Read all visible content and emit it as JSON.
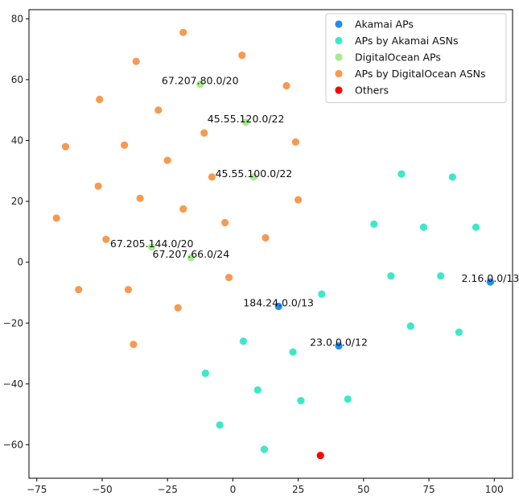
{
  "chart_data": {
    "type": "scatter",
    "title": "",
    "xlabel": "",
    "ylabel": "",
    "xlim": [
      -78,
      107
    ],
    "ylim": [
      -71,
      83
    ],
    "xticks": [
      -75,
      -50,
      -25,
      0,
      25,
      50,
      75,
      100
    ],
    "yticks": [
      -60,
      -40,
      -20,
      0,
      20,
      40,
      60,
      80
    ],
    "grid": false,
    "legend_position": "top-right",
    "series": [
      {
        "name": "Akamai APs",
        "color": "#1f8fef",
        "points": [
          [
            17.5,
            -14.5
          ],
          [
            40.5,
            -27.5
          ],
          [
            98.5,
            -6.5
          ]
        ]
      },
      {
        "name": "APs by Akamai ASNs",
        "color": "#3de8c8",
        "points": [
          [
            64.5,
            29
          ],
          [
            84,
            28
          ],
          [
            54,
            12.5
          ],
          [
            73,
            11.5
          ],
          [
            93,
            11.5
          ],
          [
            60.5,
            -4.5
          ],
          [
            79.5,
            -4.5
          ],
          [
            34,
            -10.5
          ],
          [
            68,
            -21
          ],
          [
            86.5,
            -23
          ],
          [
            4,
            -26
          ],
          [
            23,
            -29.5
          ],
          [
            -10.5,
            -36.5
          ],
          [
            9.5,
            -42
          ],
          [
            26,
            -45.5
          ],
          [
            44,
            -45
          ],
          [
            -5,
            -53.5
          ],
          [
            12,
            -61.5
          ]
        ]
      },
      {
        "name": "DigitalOcean APs",
        "color": "#a6eb8f",
        "points": [
          [
            -12.5,
            58.5
          ],
          [
            5,
            46
          ],
          [
            8,
            28
          ],
          [
            -31,
            5
          ],
          [
            -16,
            1.5
          ]
        ]
      },
      {
        "name": "APs by DigitalOcean ASNs",
        "color": "#f59a52",
        "points": [
          [
            -19,
            75.5
          ],
          [
            3.5,
            68
          ],
          [
            -37,
            66
          ],
          [
            20.5,
            58
          ],
          [
            -51,
            53.5
          ],
          [
            -28.5,
            50
          ],
          [
            -11,
            42.5
          ],
          [
            24,
            39.5
          ],
          [
            -64,
            38
          ],
          [
            -41.5,
            38.5
          ],
          [
            -25,
            33.5
          ],
          [
            -8,
            28
          ],
          [
            -51.5,
            25
          ],
          [
            -35.5,
            21
          ],
          [
            25,
            20.5
          ],
          [
            -19,
            17.5
          ],
          [
            -67.5,
            14.5
          ],
          [
            -3,
            13
          ],
          [
            12.5,
            8
          ],
          [
            -48.5,
            7.5
          ],
          [
            -1.5,
            -5
          ],
          [
            -59,
            -9
          ],
          [
            -40,
            -9
          ],
          [
            -21,
            -15
          ],
          [
            -38,
            -27
          ]
        ]
      },
      {
        "name": "Others",
        "color": "#ff0000",
        "points": [
          [
            33.5,
            -63.5
          ]
        ]
      }
    ],
    "annotations": [
      {
        "text": "67.207.80.0/20",
        "x": -12.5,
        "y": 58.5
      },
      {
        "text": "45.55.120.0/22",
        "x": 5,
        "y": 46
      },
      {
        "text": "45.55.100.0/22",
        "x": 8,
        "y": 28
      },
      {
        "text": "67.205.144.0/20",
        "x": -31,
        "y": 5
      },
      {
        "text": "67.207.66.0/24",
        "x": -16,
        "y": 1.5
      },
      {
        "text": "184.24.0.0/13",
        "x": 17.5,
        "y": -14.5
      },
      {
        "text": "23.0.0.0/12",
        "x": 40.5,
        "y": -27.5
      },
      {
        "text": "2.16.0.0/13",
        "x": 98.5,
        "y": -6.5
      }
    ]
  }
}
